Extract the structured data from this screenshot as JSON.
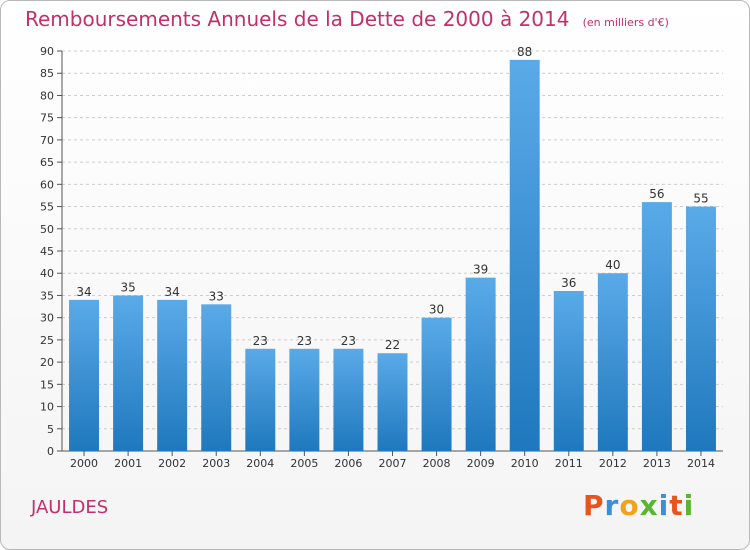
{
  "header": {
    "title": "Remboursements Annuels de la Dette de 2000 à 2014",
    "subtitle": "(en milliers d'€)"
  },
  "footer": {
    "commune": "JAULDES",
    "logo_text": "Proxiti",
    "logo_colors": [
      "#e8541e",
      "#3b8fd6",
      "#f2a11a",
      "#5bb531",
      "#3b8fd6",
      "#e8541e",
      "#5bb531"
    ]
  },
  "colors": {
    "bar_light": "#5aaae8",
    "bar_dark": "#1f78bd",
    "grid": "#cccccc",
    "text": "#333333",
    "title": "#c0306a"
  },
  "chart_data": {
    "type": "bar",
    "categories": [
      "2000",
      "2001",
      "2002",
      "2003",
      "2004",
      "2005",
      "2006",
      "2007",
      "2008",
      "2009",
      "2010",
      "2011",
      "2012",
      "2013",
      "2014"
    ],
    "values": [
      34,
      35,
      34,
      33,
      23,
      23,
      23,
      22,
      30,
      39,
      88,
      36,
      40,
      56,
      55
    ],
    "ylim": [
      0,
      90
    ],
    "yticks": [
      0,
      5,
      10,
      15,
      20,
      25,
      30,
      35,
      40,
      45,
      50,
      55,
      60,
      65,
      70,
      75,
      80,
      85,
      90
    ],
    "grid": true,
    "data_labels": true
  }
}
